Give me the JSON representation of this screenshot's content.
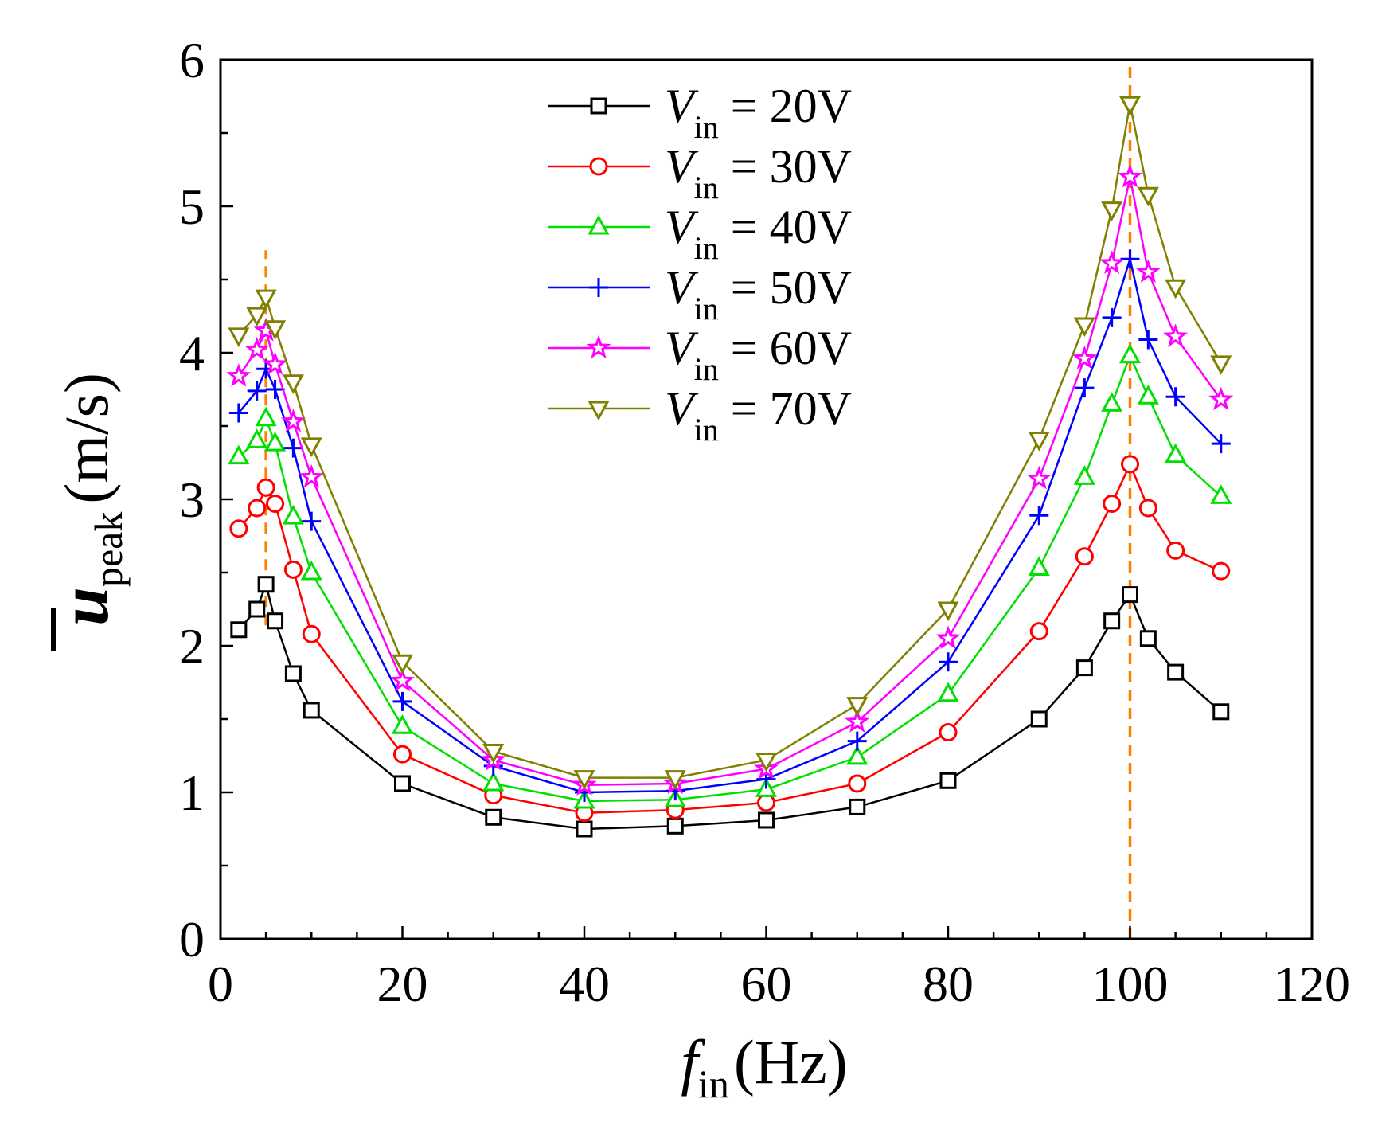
{
  "chart_data": {
    "type": "line",
    "title": "",
    "xlabel": {
      "main": "f",
      "sub": "in",
      "unit": "(Hz)"
    },
    "ylabel": {
      "main": "u",
      "sub": "peak",
      "unit": "(m/s)"
    },
    "xlim": [
      0,
      120
    ],
    "ylim": [
      0,
      6
    ],
    "xticks": [
      0,
      20,
      40,
      60,
      80,
      100,
      120
    ],
    "yticks": [
      0,
      1,
      2,
      3,
      4,
      5,
      6
    ],
    "x_minor_step": 5,
    "y_minor_step": 0.5,
    "grid": false,
    "legend_position": "top-center",
    "x": [
      2,
      4,
      5,
      6,
      8,
      10,
      20,
      30,
      40,
      50,
      60,
      70,
      80,
      90,
      95,
      98,
      100,
      102,
      105,
      110
    ],
    "series": [
      {
        "name": "20V",
        "label_prefix": "V",
        "label_sub": "in",
        "label_value": " = 20V",
        "color": "#000000",
        "marker": "square",
        "values": [
          2.11,
          2.25,
          2.42,
          2.17,
          1.81,
          1.56,
          1.06,
          0.83,
          0.75,
          0.77,
          0.81,
          0.9,
          1.08,
          1.5,
          1.85,
          2.17,
          2.35,
          2.05,
          1.82,
          1.55
        ]
      },
      {
        "name": "30V",
        "label_prefix": "V",
        "label_sub": "in",
        "label_value": " = 30V",
        "color": "#ff0000",
        "marker": "circle",
        "values": [
          2.8,
          2.94,
          3.08,
          2.97,
          2.52,
          2.08,
          1.26,
          0.98,
          0.86,
          0.88,
          0.93,
          1.06,
          1.41,
          2.1,
          2.61,
          2.97,
          3.24,
          2.94,
          2.65,
          2.51
        ]
      },
      {
        "name": "40V",
        "label_prefix": "V",
        "label_sub": "in",
        "label_value": " = 40V",
        "color": "#00e000",
        "marker": "triangle-up",
        "values": [
          3.29,
          3.4,
          3.55,
          3.38,
          2.88,
          2.5,
          1.45,
          1.06,
          0.94,
          0.95,
          1.02,
          1.24,
          1.67,
          2.53,
          3.15,
          3.65,
          3.98,
          3.7,
          3.3,
          3.02
        ]
      },
      {
        "name": "50V",
        "label_prefix": "V",
        "label_sub": "in",
        "label_value": " = 50V",
        "color": "#0000ff",
        "marker": "plus",
        "values": [
          3.59,
          3.74,
          3.89,
          3.75,
          3.35,
          2.85,
          1.62,
          1.18,
          1.0,
          1.01,
          1.09,
          1.35,
          1.89,
          2.89,
          3.76,
          4.24,
          4.64,
          4.09,
          3.7,
          3.38
        ]
      },
      {
        "name": "60V",
        "label_prefix": "V",
        "label_sub": "in",
        "label_value": " = 60V",
        "color": "#ff00ff",
        "marker": "star",
        "values": [
          3.84,
          4.02,
          4.15,
          3.92,
          3.53,
          3.15,
          1.76,
          1.22,
          1.05,
          1.06,
          1.16,
          1.48,
          2.05,
          3.14,
          3.96,
          4.61,
          5.2,
          4.55,
          4.11,
          3.68
        ]
      },
      {
        "name": "70V",
        "label_prefix": "V",
        "label_sub": "in",
        "label_value": " = 70V",
        "color": "#808000",
        "marker": "triangle-down",
        "values": [
          4.12,
          4.26,
          4.38,
          4.17,
          3.8,
          3.37,
          1.89,
          1.28,
          1.1,
          1.1,
          1.22,
          1.6,
          2.25,
          3.41,
          4.19,
          4.98,
          5.7,
          5.08,
          4.45,
          3.93
        ]
      }
    ],
    "reference_lines": [
      {
        "x": 5,
        "y_range": [
          2.14,
          4.7
        ],
        "color": "#ff8000",
        "style": "dashed"
      },
      {
        "x": 100,
        "y_range": [
          0,
          6
        ],
        "color": "#ff8000",
        "style": "dashed"
      }
    ]
  }
}
